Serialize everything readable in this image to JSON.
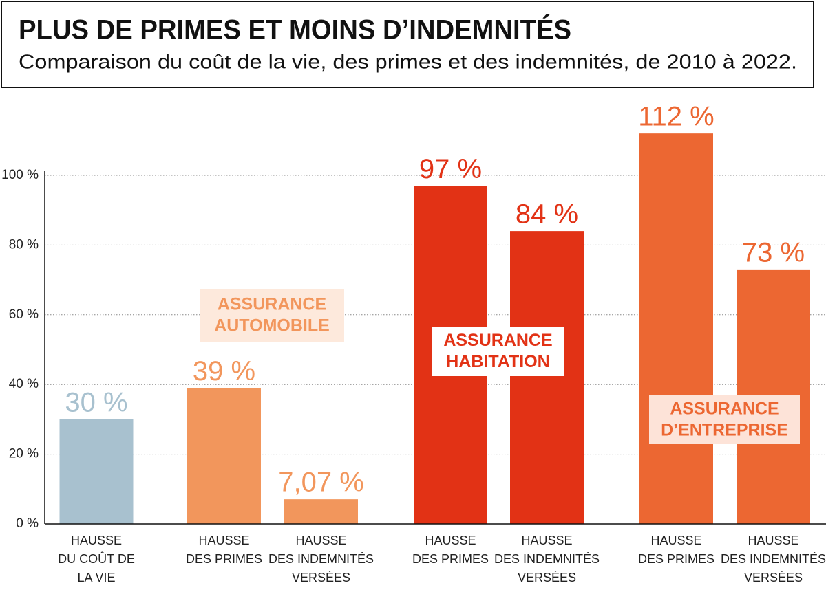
{
  "chart_data": {
    "type": "bar",
    "title": "PLUS DE PRIMES ET MOINS D’INDEMNITÉS",
    "subtitle": "Comparaison du coût de la vie, des primes et des indemnités, de 2010 à 2022.",
    "categories": [
      "HAUSSE\nDU COÛT DE\nLA VIE",
      "HAUSSE\nDES PRIMES",
      "HAUSSE\nDES INDEMNITÉS\nVERSÉES",
      "HAUSSE\nDES PRIMES",
      "HAUSSE\nDES INDEMNITÉS\nVERSÉES",
      "HAUSSE\nDES PRIMES",
      "HAUSSE\nDES INDEMNITÉS\nVERSÉES"
    ],
    "values": [
      30,
      39,
      7.07,
      97,
      84,
      112,
      73
    ],
    "value_labels": [
      "30 %",
      "39 %",
      "7,07 %",
      "97 %",
      "84 %",
      "112 %",
      "73 %"
    ],
    "colors": [
      "#a8c1cf",
      "#f2965c",
      "#f2965c",
      "#e23215",
      "#e23215",
      "#ec6732",
      "#ec6732"
    ],
    "ylim": [
      0,
      100
    ],
    "yticks": [
      {
        "value": 0,
        "label": "0 %"
      },
      {
        "value": 20,
        "label": "20 %"
      },
      {
        "value": 40,
        "label": "40 %"
      },
      {
        "value": 60,
        "label": "60 %"
      },
      {
        "value": 80,
        "label": "80 %"
      },
      {
        "value": 100,
        "label": "100 %"
      }
    ],
    "grid": true,
    "annotations": [
      {
        "text": "ASSURANCE\nAUTOMOBILE",
        "color": "#f2965c",
        "background": "#fde9dc"
      },
      {
        "text": "ASSURANCE\nHABITATION",
        "color": "#e23215",
        "background": "#ffffff"
      },
      {
        "text": "ASSURANCE\nD’ENTREPRISE",
        "color": "#ec6732",
        "background": "#fde3d8"
      }
    ]
  }
}
